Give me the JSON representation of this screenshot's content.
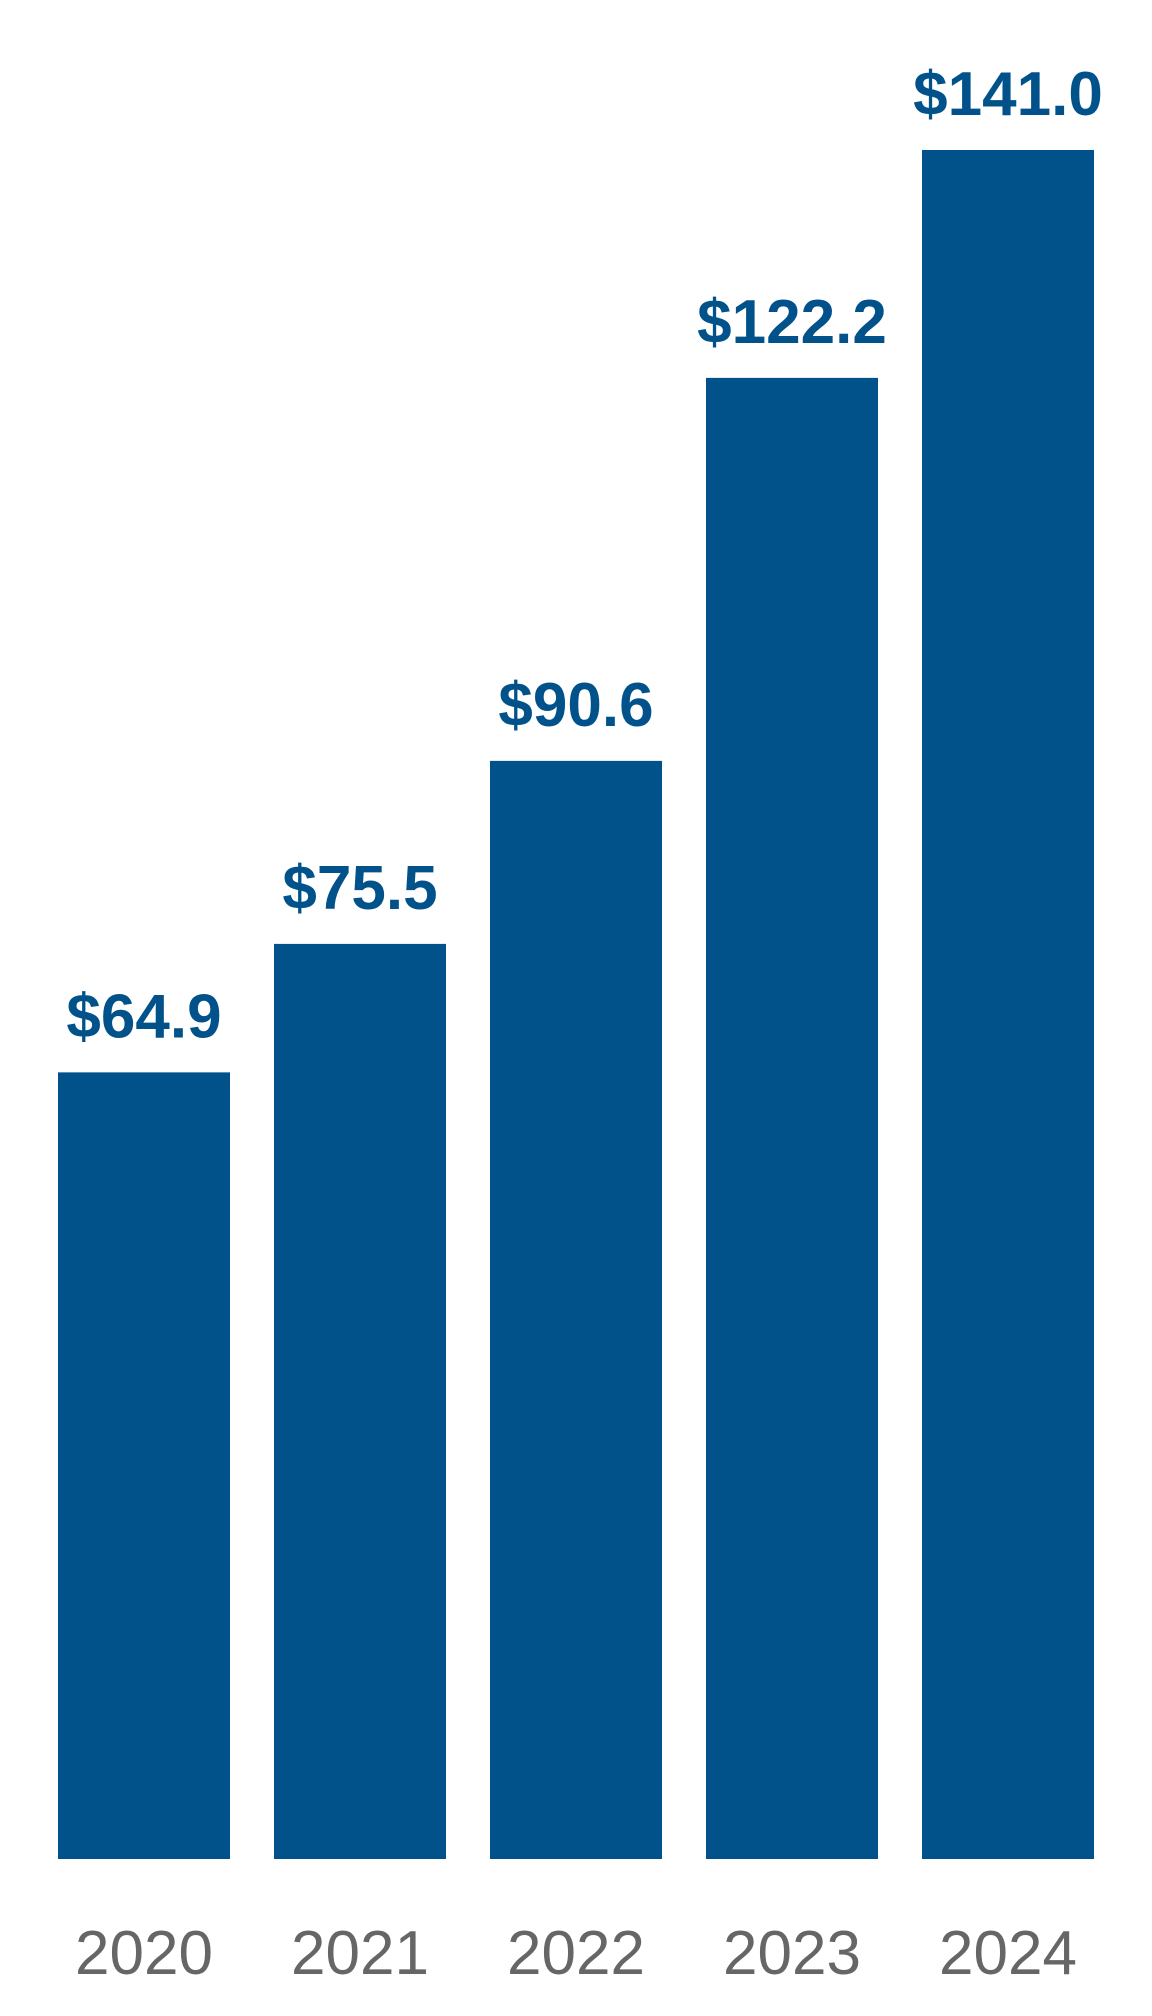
{
  "chart_data": {
    "type": "bar",
    "categories": [
      "2020",
      "2021",
      "2022",
      "2023",
      "2024"
    ],
    "values": [
      64.9,
      75.5,
      90.6,
      122.2,
      141.0
    ],
    "value_labels": [
      "$64.9",
      "$75.5",
      "$90.6",
      "$122.2",
      "$141.0"
    ],
    "color": "#01528a"
  }
}
